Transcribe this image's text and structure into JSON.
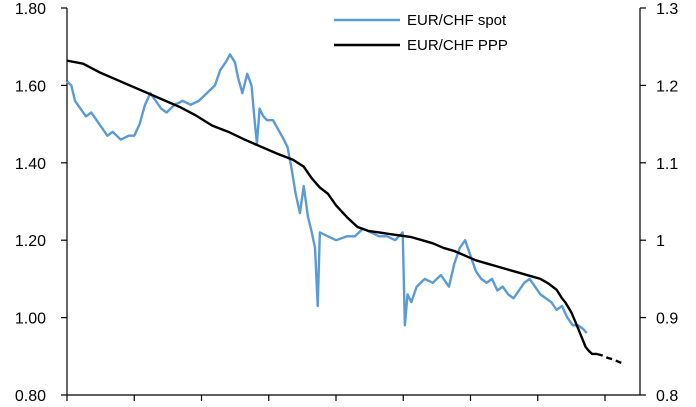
{
  "chart_data": {
    "type": "line",
    "title": "",
    "xlabel": "",
    "ylabel": "",
    "y_left": {
      "range": [
        0.8,
        1.8
      ],
      "ticks": [
        0.8,
        1.0,
        1.2,
        1.4,
        1.6,
        1.8
      ],
      "tick_labels": [
        "0.80",
        "1.00",
        "1.20",
        "1.40",
        "1.60",
        "1.80"
      ]
    },
    "y_right": {
      "range": [
        0.8,
        1.3
      ],
      "ticks": [
        0.8,
        0.9,
        1.0,
        1.1,
        1.2,
        1.3
      ],
      "tick_labels": [
        "0.8",
        "0.9",
        "1",
        "1.1",
        "1.2",
        "1.3"
      ]
    },
    "x": {
      "range": [
        0,
        100
      ],
      "tick_positions": [
        0,
        12.5,
        25,
        37.5,
        50,
        62.5,
        75,
        87.5,
        100
      ],
      "tick_labels": []
    },
    "grid": false,
    "legend": {
      "placement": "top-center",
      "entries": [
        "EUR/CHF spot",
        "EUR/CHF PPP"
      ]
    },
    "series": [
      {
        "name": "EUR/CHF spot",
        "axis": "left",
        "color": "#5b9bd5",
        "style": "solid",
        "points": [
          [
            0,
            1.61
          ],
          [
            0.8,
            1.6
          ],
          [
            1.5,
            1.56
          ],
          [
            2.5,
            1.54
          ],
          [
            3.5,
            1.52
          ],
          [
            4.5,
            1.53
          ],
          [
            5.5,
            1.51
          ],
          [
            6.5,
            1.49
          ],
          [
            7.5,
            1.47
          ],
          [
            8.5,
            1.48
          ],
          [
            10,
            1.46
          ],
          [
            11.5,
            1.47
          ],
          [
            12.5,
            1.47
          ],
          [
            13.5,
            1.5
          ],
          [
            14.5,
            1.55
          ],
          [
            15.5,
            1.58
          ],
          [
            16.5,
            1.56
          ],
          [
            17.5,
            1.54
          ],
          [
            18.5,
            1.53
          ],
          [
            20,
            1.55
          ],
          [
            21.5,
            1.56
          ],
          [
            23,
            1.55
          ],
          [
            24.5,
            1.56
          ],
          [
            26,
            1.58
          ],
          [
            27.5,
            1.6
          ],
          [
            28.5,
            1.64
          ],
          [
            29.5,
            1.66
          ],
          [
            30.3,
            1.68
          ],
          [
            31.2,
            1.66
          ],
          [
            31.8,
            1.62
          ],
          [
            32.6,
            1.58
          ],
          [
            33.5,
            1.63
          ],
          [
            34.3,
            1.6
          ],
          [
            34.8,
            1.52
          ],
          [
            35.3,
            1.45
          ],
          [
            35.8,
            1.54
          ],
          [
            36.5,
            1.52
          ],
          [
            37.2,
            1.51
          ],
          [
            38.3,
            1.51
          ],
          [
            39.5,
            1.48
          ],
          [
            40.3,
            1.46
          ],
          [
            41,
            1.44
          ],
          [
            41.8,
            1.38
          ],
          [
            42.5,
            1.32
          ],
          [
            43.3,
            1.27
          ],
          [
            44,
            1.34
          ],
          [
            44.8,
            1.26
          ],
          [
            45.5,
            1.22
          ],
          [
            46.1,
            1.18
          ],
          [
            46.6,
            1.03
          ],
          [
            47,
            1.22
          ],
          [
            48.5,
            1.21
          ],
          [
            50,
            1.2
          ],
          [
            52,
            1.21
          ],
          [
            53.5,
            1.21
          ],
          [
            55,
            1.23
          ],
          [
            56.5,
            1.22
          ],
          [
            58,
            1.21
          ],
          [
            59.5,
            1.21
          ],
          [
            61,
            1.2
          ],
          [
            62.4,
            1.22
          ],
          [
            62.8,
            0.98
          ],
          [
            63.3,
            1.06
          ],
          [
            64,
            1.04
          ],
          [
            65,
            1.08
          ],
          [
            66.5,
            1.1
          ],
          [
            68,
            1.09
          ],
          [
            69.5,
            1.11
          ],
          [
            71,
            1.08
          ],
          [
            72,
            1.14
          ],
          [
            73,
            1.18
          ],
          [
            74,
            1.2
          ],
          [
            75,
            1.16
          ],
          [
            76,
            1.12
          ],
          [
            77,
            1.1
          ],
          [
            78,
            1.09
          ],
          [
            79,
            1.1
          ],
          [
            80,
            1.07
          ],
          [
            81,
            1.08
          ],
          [
            82,
            1.06
          ],
          [
            83,
            1.05
          ],
          [
            84,
            1.07
          ],
          [
            85,
            1.09
          ],
          [
            86,
            1.1
          ],
          [
            87,
            1.08
          ],
          [
            88,
            1.06
          ],
          [
            89,
            1.05
          ],
          [
            90,
            1.04
          ],
          [
            91,
            1.02
          ],
          [
            92,
            1.03
          ],
          [
            93,
            1.0
          ],
          [
            94,
            0.98
          ],
          [
            95,
            0.98
          ],
          [
            96,
            0.97
          ],
          [
            96.6,
            0.96
          ]
        ]
      },
      {
        "name": "EUR/CHF PPP",
        "axis": "right",
        "color": "#000000",
        "style": "solid-then-dashed",
        "dash_from_x": 98.5,
        "points": [
          [
            0,
            1.232
          ],
          [
            3,
            1.228
          ],
          [
            6,
            1.217
          ],
          [
            9,
            1.208
          ],
          [
            12,
            1.199
          ],
          [
            15,
            1.19
          ],
          [
            18,
            1.181
          ],
          [
            21,
            1.172
          ],
          [
            24,
            1.161
          ],
          [
            27,
            1.148
          ],
          [
            30,
            1.14
          ],
          [
            33,
            1.13
          ],
          [
            36,
            1.121
          ],
          [
            39,
            1.112
          ],
          [
            42,
            1.104
          ],
          [
            44,
            1.095
          ],
          [
            45.5,
            1.08
          ],
          [
            47,
            1.068
          ],
          [
            48.5,
            1.06
          ],
          [
            50,
            1.045
          ],
          [
            52,
            1.03
          ],
          [
            54,
            1.017
          ],
          [
            56,
            1.012
          ],
          [
            58,
            1.01
          ],
          [
            60,
            1.008
          ],
          [
            62,
            1.006
          ],
          [
            64,
            1.004
          ],
          [
            66,
            1.0
          ],
          [
            68,
            0.996
          ],
          [
            70,
            0.99
          ],
          [
            72,
            0.986
          ],
          [
            74,
            0.98
          ],
          [
            76,
            0.974
          ],
          [
            78,
            0.97
          ],
          [
            80,
            0.966
          ],
          [
            82,
            0.962
          ],
          [
            84,
            0.958
          ],
          [
            86,
            0.954
          ],
          [
            88,
            0.95
          ],
          [
            89.5,
            0.944
          ],
          [
            91,
            0.936
          ],
          [
            92,
            0.925
          ],
          [
            92.6,
            0.92
          ],
          [
            93.2,
            0.913
          ],
          [
            93.8,
            0.906
          ],
          [
            94.4,
            0.896
          ],
          [
            95,
            0.886
          ],
          [
            95.7,
            0.874
          ],
          [
            96.4,
            0.862
          ],
          [
            97,
            0.857
          ],
          [
            97.6,
            0.853
          ],
          [
            98.5,
            0.853
          ],
          [
            99.5,
            0.851
          ],
          [
            100.5,
            0.848
          ],
          [
            101.5,
            0.846
          ],
          [
            102.5,
            0.843
          ],
          [
            103.2,
            0.841
          ]
        ]
      }
    ]
  }
}
